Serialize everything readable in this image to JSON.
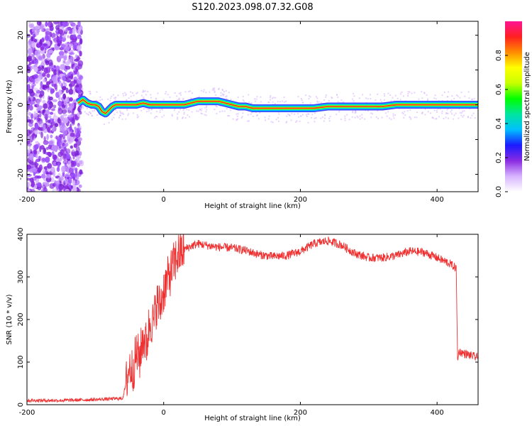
{
  "title": "S120.2023.098.07.32.G08",
  "chart_data": [
    {
      "type": "heatmap",
      "name": "spectrogram",
      "xlabel": "Height of straight line (km)",
      "ylabel": "Frequency (Hz)",
      "xlim": [
        -200,
        460
      ],
      "ylim": [
        -25,
        24
      ],
      "xticks": [
        -200,
        0,
        200,
        400
      ],
      "yticks": [
        -20,
        -10,
        0,
        10,
        20
      ],
      "colorbar": {
        "label": "Normalized spectral amplitude",
        "range": [
          0,
          1
        ],
        "ticks": [
          0.0,
          0.2,
          0.4,
          0.6,
          0.8
        ],
        "colormap": [
          "#ffffff",
          "#d7b4ff",
          "#8a2be2",
          "#1a1aff",
          "#00bfff",
          "#00e5a0",
          "#00ff00",
          "#c8ff00",
          "#ffff00",
          "#ff8c00",
          "#ff2020",
          "#ff1493"
        ]
      },
      "ridge": {
        "x": [
          -125,
          -118,
          -112,
          -105,
          -100,
          -95,
          -90,
          -85,
          -80,
          -75,
          -70,
          -60,
          -50,
          -40,
          -30,
          -20,
          0,
          20,
          30,
          40,
          50,
          60,
          70,
          80,
          90,
          100,
          110,
          120,
          130,
          140,
          160,
          180,
          200,
          220,
          240,
          260,
          280,
          300,
          320,
          340,
          360,
          380,
          400,
          420,
          440,
          460
        ],
        "y": [
          0.5,
          1.5,
          0.5,
          0,
          0,
          -0.5,
          -2,
          -2.5,
          -1.5,
          -0.5,
          0,
          0,
          0,
          0,
          0.5,
          0,
          0,
          0,
          0,
          0.5,
          1,
          1,
          1,
          1,
          0.5,
          0,
          -0.5,
          -0.5,
          -1,
          -1,
          -1,
          -1,
          -1,
          -1,
          -0.5,
          -0.5,
          -0.5,
          -0.5,
          -0.5,
          0,
          0,
          0,
          0,
          0,
          0,
          0
        ]
      },
      "noise_region_x": [
        -200,
        -120
      ]
    },
    {
      "type": "line",
      "name": "snr",
      "xlabel": "Height of straight line (km)",
      "ylabel": "SNR (10 * v/v)",
      "xlim": [
        -200,
        460
      ],
      "ylim": [
        0,
        400
      ],
      "xticks": [
        -200,
        0,
        200,
        400
      ],
      "yticks": [
        0,
        100,
        200,
        300,
        400
      ],
      "series": [
        {
          "color": "#f03030",
          "x": [
            -200,
            -150,
            -100,
            -60,
            -55,
            -50,
            -45,
            -40,
            -35,
            -30,
            -25,
            -20,
            -15,
            -10,
            -5,
            0,
            5,
            10,
            15,
            20,
            30,
            40,
            50,
            60,
            70,
            80,
            100,
            120,
            140,
            160,
            180,
            200,
            220,
            240,
            260,
            280,
            300,
            320,
            340,
            360,
            380,
            400,
            420,
            428,
            430,
            432,
            440,
            460
          ],
          "y": [
            10,
            10,
            12,
            15,
            50,
            90,
            80,
            120,
            110,
            160,
            140,
            200,
            190,
            240,
            230,
            270,
            290,
            310,
            330,
            350,
            365,
            372,
            378,
            375,
            372,
            370,
            368,
            362,
            352,
            348,
            350,
            360,
            378,
            385,
            375,
            355,
            345,
            345,
            350,
            360,
            358,
            345,
            330,
            320,
            105,
            125,
            120,
            110
          ]
        }
      ]
    }
  ]
}
